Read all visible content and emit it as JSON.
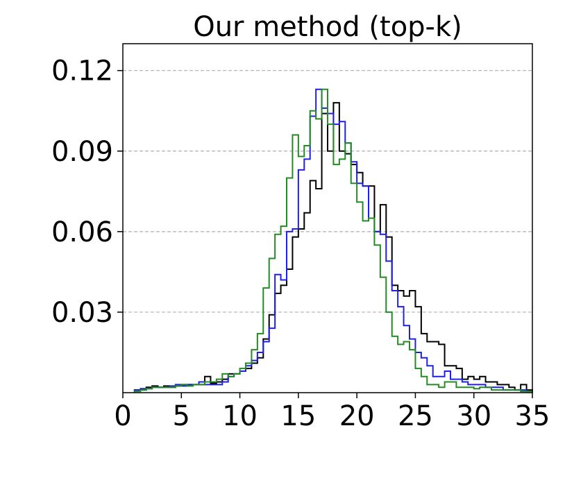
{
  "chart_data": {
    "type": "histogram-step",
    "title": "Our method (top-k)",
    "xlim": [
      0,
      35
    ],
    "ylim": [
      0,
      0.13
    ],
    "x_ticks": [
      0,
      5,
      10,
      15,
      20,
      25,
      30,
      35
    ],
    "x_tick_labels": [
      "0",
      "5",
      "10",
      "15",
      "20",
      "25",
      "30",
      "35"
    ],
    "y_ticks": [
      0.03,
      0.06,
      0.09,
      0.12
    ],
    "y_tick_labels": [
      "0.03",
      "0.06",
      "0.09",
      "0.12"
    ],
    "grid": "horizontal dashed",
    "bin_width": 0.5,
    "series": [
      {
        "color": "#000000",
        "bin_starts": [
          1,
          1.5,
          2,
          2.5,
          3,
          3.5,
          4,
          4.5,
          5,
          5.5,
          6,
          6.5,
          7,
          7.5,
          8,
          8.5,
          9,
          9.5,
          10,
          10.5,
          11,
          11.5,
          12,
          12.5,
          13,
          13.5,
          14,
          14.5,
          15,
          15.5,
          16,
          16.5,
          17,
          17.5,
          18,
          18.5,
          19,
          19.5,
          20,
          20.5,
          21,
          21.5,
          22,
          22.5,
          23,
          23.5,
          24,
          24.5,
          25,
          25.5,
          26,
          26.5,
          27,
          27.5,
          28,
          28.5,
          29,
          29.5,
          30,
          30.5,
          31,
          31.5,
          32,
          32.5,
          33,
          33.5,
          34,
          34.5
        ],
        "values": [
          0.001,
          0.001,
          0.002,
          0.0025,
          0.002,
          0.0025,
          0.002,
          0.0025,
          0.003,
          0.003,
          0.003,
          0.003,
          0.006,
          0.0035,
          0.004,
          0.005,
          0.007,
          0.007,
          0.008,
          0.009,
          0.011,
          0.013,
          0.02,
          0.029,
          0.037,
          0.04,
          0.046,
          0.058,
          0.061,
          0.067,
          0.079,
          0.076,
          0.104,
          0.09,
          0.108,
          0.09,
          0.089,
          0.085,
          0.082,
          0.077,
          0.077,
          0.06,
          0.07,
          0.058,
          0.04,
          0.038,
          0.036,
          0.038,
          0.032,
          0.022,
          0.019,
          0.019,
          0.018,
          0.01,
          0.01,
          0.009,
          0.005,
          0.006,
          0.005,
          0.006,
          0.004,
          0.004,
          0.003,
          0.003,
          0.002,
          0.001,
          0.003,
          0.001
        ]
      },
      {
        "color": "#1f1fe6",
        "bin_starts": [
          1,
          1.5,
          2,
          2.5,
          3,
          3.5,
          4,
          4.5,
          5,
          5.5,
          6,
          6.5,
          7,
          7.5,
          8,
          8.5,
          9,
          9.5,
          10,
          10.5,
          11,
          11.5,
          12,
          12.5,
          13,
          13.5,
          14,
          14.5,
          15,
          15.5,
          16,
          16.5,
          17,
          17.5,
          18,
          18.5,
          19,
          19.5,
          20,
          20.5,
          21,
          21.5,
          22,
          22.5,
          23,
          23.5,
          24,
          24.5,
          25,
          25.5,
          26,
          26.5,
          27,
          27.5,
          28,
          28.5,
          29,
          29.5,
          30,
          30.5,
          31,
          31.5,
          32,
          32.5,
          33,
          33.5,
          34,
          34.5
        ],
        "values": [
          0.001,
          0.0015,
          0.0015,
          0.002,
          0.002,
          0.002,
          0.0025,
          0.003,
          0.0025,
          0.003,
          0.003,
          0.004,
          0.003,
          0.003,
          0.003,
          0.004,
          0.006,
          0.007,
          0.008,
          0.01,
          0.012,
          0.015,
          0.019,
          0.024,
          0.044,
          0.042,
          0.06,
          0.061,
          0.083,
          0.087,
          0.103,
          0.113,
          0.106,
          0.104,
          0.1,
          0.101,
          0.093,
          0.086,
          0.078,
          0.077,
          0.065,
          0.06,
          0.059,
          0.049,
          0.038,
          0.032,
          0.025,
          0.02,
          0.015,
          0.013,
          0.01,
          0.006,
          0.006,
          0.008,
          0.005,
          0.005,
          0.004,
          0.003,
          0.003,
          0.003,
          0.002,
          0.002,
          0.002,
          0.001,
          0.001,
          0.001,
          0.001,
          0.0005
        ]
      },
      {
        "color": "#228b22",
        "bin_starts": [
          1,
          1.5,
          2,
          2.5,
          3,
          3.5,
          4,
          4.5,
          5,
          5.5,
          6,
          6.5,
          7,
          7.5,
          8,
          8.5,
          9,
          9.5,
          10,
          10.5,
          11,
          11.5,
          12,
          12.5,
          13,
          13.5,
          14,
          14.5,
          15,
          15.5,
          16,
          16.5,
          17,
          17.5,
          18,
          18.5,
          19,
          19.5,
          20,
          20.5,
          21,
          21.5,
          22,
          22.5,
          23,
          23.5,
          24,
          24.5,
          25,
          25.5,
          26,
          26.5,
          27,
          27.5,
          28,
          28.5,
          29,
          29.5,
          30,
          30.5,
          31,
          31.5,
          32,
          32.5,
          33,
          33.5,
          34,
          34.5
        ],
        "values": [
          0.0005,
          0.001,
          0.0015,
          0.002,
          0.002,
          0.002,
          0.002,
          0.0025,
          0.003,
          0.0025,
          0.003,
          0.003,
          0.004,
          0.004,
          0.005,
          0.007,
          0.006,
          0.007,
          0.009,
          0.011,
          0.016,
          0.022,
          0.039,
          0.05,
          0.059,
          0.062,
          0.08,
          0.096,
          0.088,
          0.092,
          0.105,
          0.102,
          0.113,
          0.1,
          0.085,
          0.087,
          0.093,
          0.078,
          0.071,
          0.064,
          0.065,
          0.055,
          0.043,
          0.03,
          0.021,
          0.018,
          0.019,
          0.016,
          0.009,
          0.006,
          0.003,
          0.003,
          0.002,
          0.004,
          0.004,
          0.002,
          0.002,
          0.002,
          0.0015,
          0.002,
          0.002,
          0.001,
          0.001,
          0.001,
          0.001,
          0.001,
          0.0005,
          0.0005
        ]
      }
    ]
  }
}
